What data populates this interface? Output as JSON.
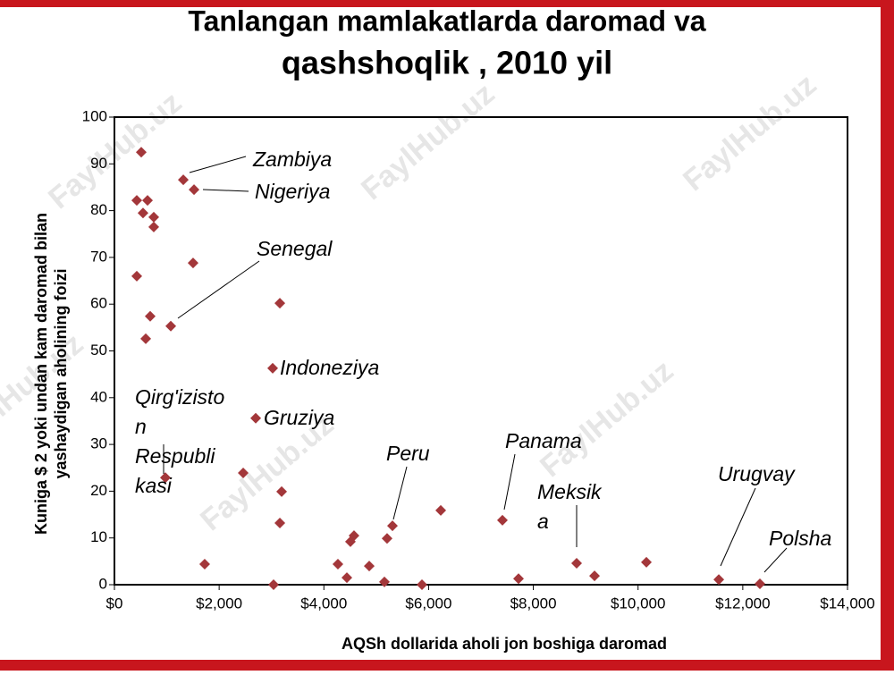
{
  "chart_data": {
    "type": "scatter",
    "title": [
      "Tanlangan mamlakatlarda daromad va",
      "qashshoqlik , 2010 yil"
    ],
    "x_label": "AQSh dollarida aholi jon boshiga daromad",
    "y_label": [
      "Kuniga $ 2 yoki undan kam daromad bilan",
      "yashaydigan aholining foizi"
    ],
    "watermark": "FaylHub.uz",
    "color": "#a3373a",
    "xlim": [
      0,
      14000
    ],
    "xticks": [
      {
        "value": 0,
        "label": "$0"
      },
      {
        "value": 2000,
        "label": "$2,000"
      },
      {
        "value": 4000,
        "label": "$4,000"
      },
      {
        "value": 6000,
        "label": "$6,000"
      },
      {
        "value": 8000,
        "label": "$8,000"
      },
      {
        "value": 10000,
        "label": "$10,000"
      },
      {
        "value": 12000,
        "label": "$12,000"
      },
      {
        "value": 14000,
        "label": "$14,000"
      }
    ],
    "ylim": [
      0,
      100
    ],
    "yticks": [
      0,
      10,
      20,
      30,
      40,
      50,
      60,
      70,
      80,
      90,
      100
    ],
    "x": [
      512,
      427,
      632,
      546,
      751,
      751,
      427,
      1315,
      1520,
      1502,
      683,
      1076,
      598,
      3159,
      3022,
      2698,
      973,
      2459,
      3193,
      3159,
      1724,
      3039,
      4268,
      4439,
      4507,
      4575,
      4866,
      5156,
      5207,
      5310,
      5873,
      6232,
      7410,
      7717,
      8827,
      9169,
      10159,
      11542,
      12327
    ],
    "values": [
      92.5,
      82.2,
      82.2,
      79.5,
      78.6,
      76.5,
      66,
      86.6,
      84.5,
      68.8,
      57.4,
      55.3,
      52.6,
      60.2,
      46.3,
      35.6,
      22.9,
      23.9,
      19.9,
      13.2,
      4.4,
      0,
      4.4,
      1.5,
      9.2,
      10.5,
      4.0,
      0.6,
      9.9,
      12.6,
      0,
      15.9,
      13.8,
      1.3,
      4.6,
      1.9,
      4.8,
      1.1,
      0.2
    ],
    "annotations": [
      [
        "Zambiya"
      ],
      [
        "Nigeriya"
      ],
      [
        "Senegal"
      ],
      [
        "Indoneziya"
      ],
      [
        "Gruziya"
      ],
      [
        "Qirg'izisto",
        "n",
        "Respubli",
        "kasi"
      ],
      [
        "Peru"
      ],
      [
        "Panama"
      ],
      [
        "Meksik",
        "a"
      ],
      [
        "Urugvay"
      ],
      [
        "Polsha"
      ]
    ]
  }
}
